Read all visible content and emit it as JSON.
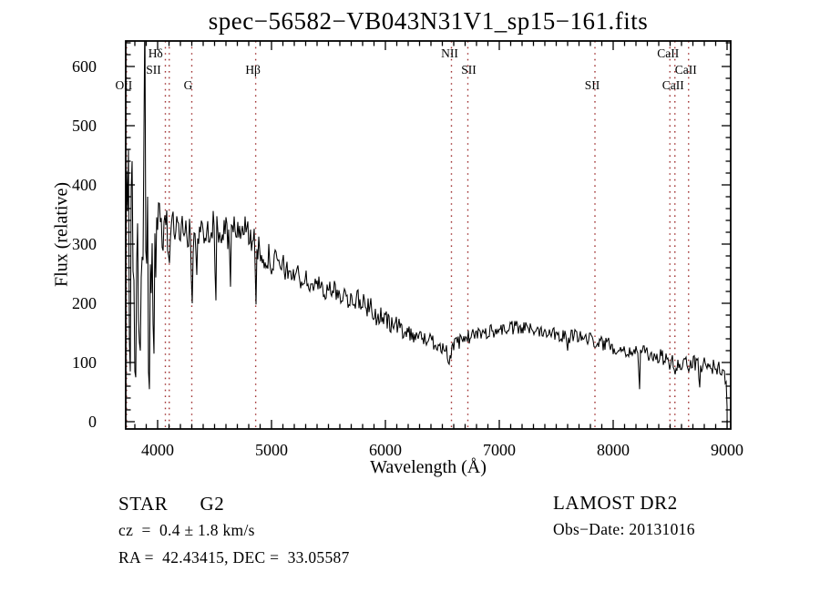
{
  "colors": {
    "background": "#ffffff",
    "axis": "#000000",
    "spectrum": "#000000",
    "marker_line": "#a23535",
    "text": "#000000"
  },
  "annotations": {
    "star_class": "STAR      G2",
    "cz": "cz  =  0.4 ± 1.8 km/s",
    "radec": "RA =  42.43415, DEC =  33.05587",
    "survey": "LAMOST DR2",
    "obs_date": "Obs−Date: 20131016"
  },
  "chart_data": {
    "type": "line",
    "title": "spec−56582−VB043N31V1_sp15−161.fits",
    "xlabel": "Wavelength (Å)",
    "ylabel": "Flux (relative)",
    "x_range": [
      3720,
      9032
    ],
    "y_range": [
      -12.3,
      643
    ],
    "x_ticks": [
      4000,
      5000,
      6000,
      7000,
      8000,
      9000
    ],
    "x_minor_step": 100,
    "y_ticks": [
      0,
      100,
      200,
      300,
      400,
      500,
      600
    ],
    "y_minor_step": 20,
    "grid": false,
    "legend": "none",
    "sample_step": 8,
    "noise_seed": 987654321,
    "line_markers": [
      {
        "label": "OII",
        "wavelength": 3727,
        "row": 3,
        "label_dx": -3
      },
      {
        "label": "SII",
        "wavelength": 4068,
        "row": 2,
        "label_dx": -13
      },
      {
        "label": "Hδ",
        "wavelength": 4102,
        "row": 1,
        "label_dx": -15
      },
      {
        "label": "G",
        "wavelength": 4300,
        "row": 3,
        "label_dx": -4
      },
      {
        "label": "Hβ",
        "wavelength": 4861,
        "row": 2,
        "label_dx": -3
      },
      {
        "label": "NII",
        "wavelength": 6580,
        "row": 1,
        "label_dx": -2
      },
      {
        "label": "SII",
        "wavelength": 6724,
        "row": 2,
        "label_dx": 1
      },
      {
        "label": "SII",
        "wavelength": 7840,
        "row": 3,
        "label_dx": -3
      },
      {
        "label": "CaII",
        "wavelength": 8498,
        "row": 1,
        "label_dx": -2
      },
      {
        "label": "CaII",
        "wavelength": 8542,
        "row": 2,
        "label_dx": 12
      },
      {
        "label": "CaII",
        "wavelength": 8662,
        "row": 3,
        "label_dx": -17
      }
    ],
    "envelope": [
      [
        3720,
        260,
        165
      ],
      [
        3752,
        255,
        175
      ],
      [
        3784,
        240,
        160
      ],
      [
        3816,
        230,
        130
      ],
      [
        3848,
        255,
        100
      ],
      [
        3872,
        310,
        55
      ],
      [
        3896,
        210,
        80
      ],
      [
        3920,
        140,
        60
      ],
      [
        3944,
        235,
        65
      ],
      [
        3968,
        255,
        60
      ],
      [
        4000,
        315,
        55
      ],
      [
        4048,
        330,
        42
      ],
      [
        4096,
        322,
        38
      ],
      [
        4152,
        330,
        30
      ],
      [
        4216,
        326,
        30
      ],
      [
        4272,
        316,
        32
      ],
      [
        4312,
        295,
        40
      ],
      [
        4360,
        318,
        30
      ],
      [
        4424,
        330,
        28
      ],
      [
        4500,
        330,
        28
      ],
      [
        4568,
        316,
        32
      ],
      [
        4640,
        320,
        28
      ],
      [
        4720,
        330,
        26
      ],
      [
        4800,
        322,
        26
      ],
      [
        4861,
        295,
        30
      ],
      [
        4920,
        285,
        25
      ],
      [
        5000,
        272,
        25
      ],
      [
        5080,
        262,
        22
      ],
      [
        5160,
        254,
        22
      ],
      [
        5250,
        243,
        20
      ],
      [
        5350,
        232,
        19
      ],
      [
        5450,
        226,
        18
      ],
      [
        5550,
        220,
        18
      ],
      [
        5650,
        212,
        18
      ],
      [
        5750,
        205,
        19
      ],
      [
        5850,
        196,
        21
      ],
      [
        5950,
        176,
        19
      ],
      [
        6050,
        166,
        17
      ],
      [
        6150,
        156,
        15
      ],
      [
        6250,
        147,
        14
      ],
      [
        6350,
        140,
        13
      ],
      [
        6450,
        132,
        13
      ],
      [
        6520,
        123,
        12
      ],
      [
        6564,
        110,
        12
      ],
      [
        6610,
        130,
        12
      ],
      [
        6700,
        141,
        12
      ],
      [
        6800,
        148,
        12
      ],
      [
        6900,
        152,
        12
      ],
      [
        7000,
        155,
        12
      ],
      [
        7100,
        158,
        12
      ],
      [
        7200,
        158,
        12
      ],
      [
        7300,
        156,
        12
      ],
      [
        7400,
        154,
        12
      ],
      [
        7500,
        150,
        12
      ],
      [
        7600,
        143,
        13
      ],
      [
        7700,
        145,
        12
      ],
      [
        7800,
        139,
        12
      ],
      [
        7900,
        133,
        12
      ],
      [
        8000,
        127,
        13
      ],
      [
        8100,
        122,
        13
      ],
      [
        8200,
        117,
        14
      ],
      [
        8300,
        114,
        13
      ],
      [
        8400,
        111,
        13
      ],
      [
        8480,
        104,
        13
      ],
      [
        8540,
        97,
        15
      ],
      [
        8620,
        101,
        14
      ],
      [
        8700,
        99,
        13
      ],
      [
        8780,
        97,
        14
      ],
      [
        8860,
        94,
        14
      ],
      [
        8930,
        90,
        13
      ],
      [
        8975,
        82,
        10
      ],
      [
        8995,
        60,
        8
      ],
      [
        9000,
        25,
        5
      ]
    ],
    "features": [
      [
        3744,
        460
      ],
      [
        3760,
        85
      ],
      [
        3776,
        440
      ],
      [
        3800,
        95
      ],
      [
        3810,
        75
      ],
      [
        3850,
        120
      ],
      [
        3888,
        700
      ],
      [
        3912,
        380
      ],
      [
        3930,
        55
      ],
      [
        3968,
        115
      ],
      [
        4102,
        268
      ],
      [
        4300,
        200
      ],
      [
        4340,
        248
      ],
      [
        4512,
        205
      ],
      [
        4640,
        228
      ],
      [
        4861,
        198
      ],
      [
        5890,
        175
      ],
      [
        6563,
        97
      ],
      [
        7600,
        120
      ],
      [
        8230,
        55
      ],
      [
        8498,
        88
      ],
      [
        8542,
        80
      ],
      [
        8662,
        85
      ],
      [
        8760,
        58
      ]
    ]
  }
}
